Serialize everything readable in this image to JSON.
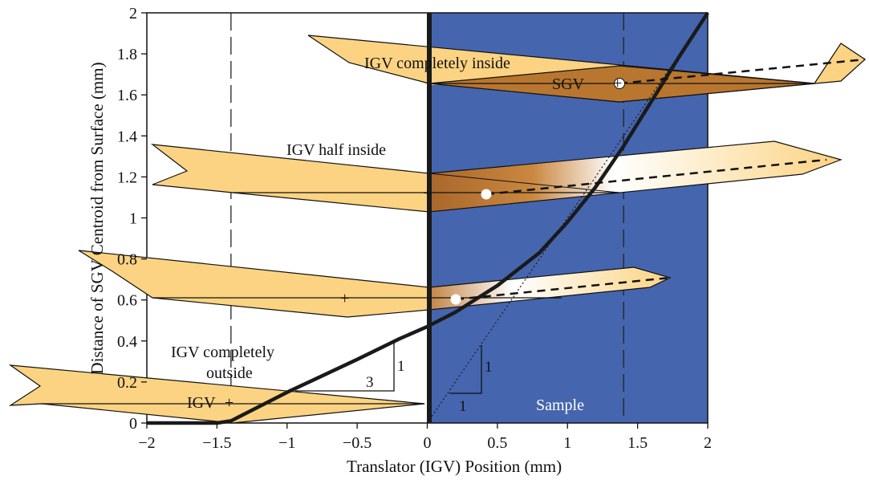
{
  "chart_data": {
    "type": "line",
    "xlabel": "Translator (IGV) Position (mm)",
    "ylabel": "Distance of SGV Centroid from Surface (mm)",
    "xlim": [
      -2,
      2
    ],
    "ylim": [
      0,
      2
    ],
    "xticks": [
      "−2",
      "−1.5",
      "−1",
      "−0.5",
      "0",
      "0.5",
      "1",
      "1.5",
      "2"
    ],
    "yticks": [
      "0",
      "0.2",
      "0.4",
      "0.6",
      "0.8",
      "1",
      "1.2",
      "1.4",
      "1.6",
      "1.8",
      "2"
    ],
    "sample_region": {
      "x_from": 0,
      "x_to": 2,
      "color": "#4565AE",
      "label": "Sample"
    },
    "dashed_guides_x": [
      -1.4,
      1.4
    ],
    "series": [
      {
        "style": "solid-thick",
        "x": [
          -2,
          -1.5,
          -1.4,
          -1.0,
          -0.5,
          -0.2,
          0,
          0.2,
          0.5,
          0.8,
          1.0,
          1.2,
          1.4,
          1.6,
          1.8,
          2.0
        ],
        "y": [
          0,
          0,
          0.01,
          0.15,
          0.31,
          0.41,
          0.47,
          0.54,
          0.67,
          0.83,
          0.98,
          1.15,
          1.35,
          1.57,
          1.79,
          2.0
        ]
      },
      {
        "style": "dotted",
        "x": [
          0,
          1.85
        ],
        "y": [
          0,
          1.85
        ]
      }
    ],
    "slope_triangles": [
      {
        "run_label": "3",
        "rise_label": "1"
      },
      {
        "run_label": "1",
        "rise_label": "1"
      }
    ],
    "annotations": {
      "completely_inside": "IGV completely inside",
      "sgv": "SGV",
      "half_inside": "IGV half inside",
      "completely_outside_line1": "IGV completely",
      "completely_outside_line2": "outside",
      "igv": "IGV",
      "plus": "+"
    },
    "colors": {
      "wedge": "#FCD382",
      "wedge_dark": "#B8762E",
      "sample": "#4565AE",
      "curve": "#1A1A1A"
    },
    "grid": false,
    "legend": "none"
  }
}
